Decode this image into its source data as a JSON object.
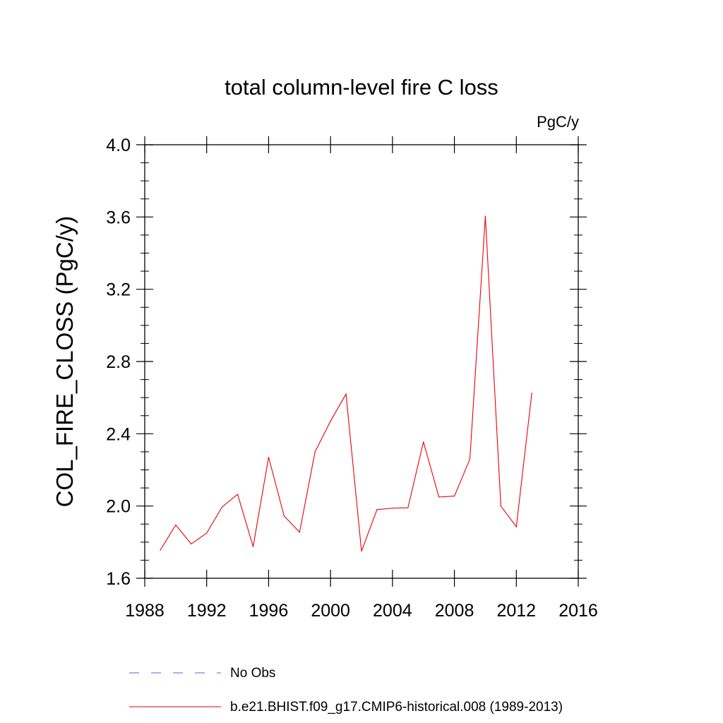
{
  "chart_data": {
    "type": "line",
    "title": "total column-level fire C loss",
    "units": "PgC/y",
    "ylabel": "COL_FIRE_CLOSS  (PgC/y)",
    "xlabel": "",
    "xlim": [
      1988,
      2016
    ],
    "ylim": [
      1.6,
      4.0
    ],
    "xticks": [
      1988,
      1992,
      1996,
      2000,
      2004,
      2008,
      2012,
      2016
    ],
    "yticks": [
      "1.6",
      "2.0",
      "2.4",
      "2.8",
      "3.2",
      "3.6",
      "4.0"
    ],
    "grid": false,
    "legend_position": "bottom",
    "series": [
      {
        "name": "b.e21.BHIST.f09_g17.CMIP6-historical.008 (1989-2013)",
        "color": "#e8000b",
        "style": "solid",
        "x": [
          1989,
          1990,
          1991,
          1992,
          1993,
          1994,
          1995,
          1996,
          1997,
          1998,
          1999,
          2000,
          2001,
          2002,
          2003,
          2004,
          2005,
          2006,
          2007,
          2008,
          2009,
          2010,
          2011,
          2012,
          2013
        ],
        "values": [
          1.755,
          1.895,
          1.79,
          1.85,
          1.995,
          2.065,
          1.775,
          2.27,
          1.945,
          1.855,
          2.3,
          2.47,
          2.62,
          1.75,
          1.98,
          1.988,
          1.99,
          2.355,
          2.05,
          2.055,
          2.26,
          3.605,
          2.0,
          1.885,
          2.625
        ]
      }
    ],
    "legend": [
      {
        "label": "No Obs",
        "color": "#6a5acd",
        "style": "dashed"
      },
      {
        "label": "b.e21.BHIST.f09_g17.CMIP6-historical.008 (1989-2013)",
        "color": "#e8000b",
        "style": "solid"
      }
    ]
  }
}
